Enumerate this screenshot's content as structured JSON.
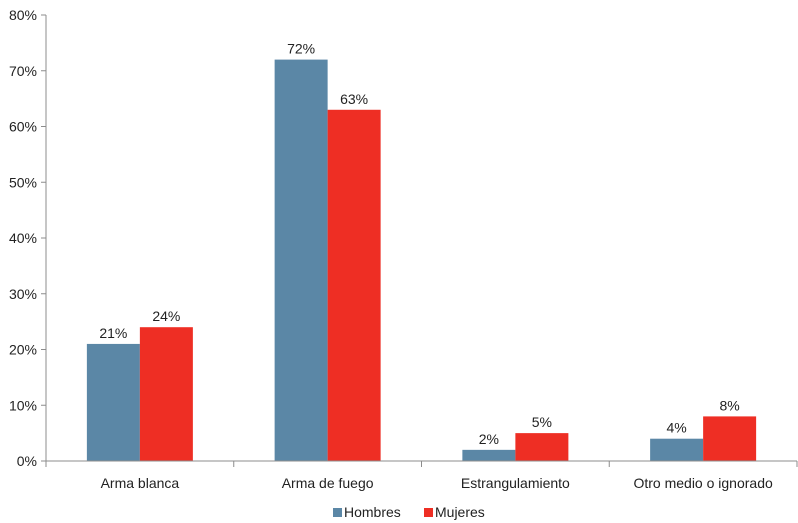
{
  "chart_data": {
    "type": "bar",
    "categories": [
      "Arma blanca",
      "Arma de fuego",
      "Estrangulamiento",
      "Otro medio o ignorado"
    ],
    "series": [
      {
        "name": "Hombres",
        "values": [
          21,
          72,
          2,
          4
        ],
        "labels": [
          "21%",
          "72%",
          "2%",
          "4%"
        ],
        "color": "#5b87a6"
      },
      {
        "name": "Mujeres",
        "values": [
          24,
          63,
          5,
          8
        ],
        "labels": [
          "24%",
          "63%",
          "5%",
          "8%"
        ],
        "color": "#ee2e24"
      }
    ],
    "ylim": [
      0,
      80
    ],
    "yticks": [
      0,
      10,
      20,
      30,
      40,
      50,
      60,
      70,
      80
    ],
    "ytick_labels": [
      "0%",
      "10%",
      "20%",
      "30%",
      "40%",
      "50%",
      "60%",
      "70%",
      "80%"
    ],
    "title": "",
    "xlabel": "",
    "ylabel": "",
    "grid": false,
    "legend_position": "bottom"
  }
}
